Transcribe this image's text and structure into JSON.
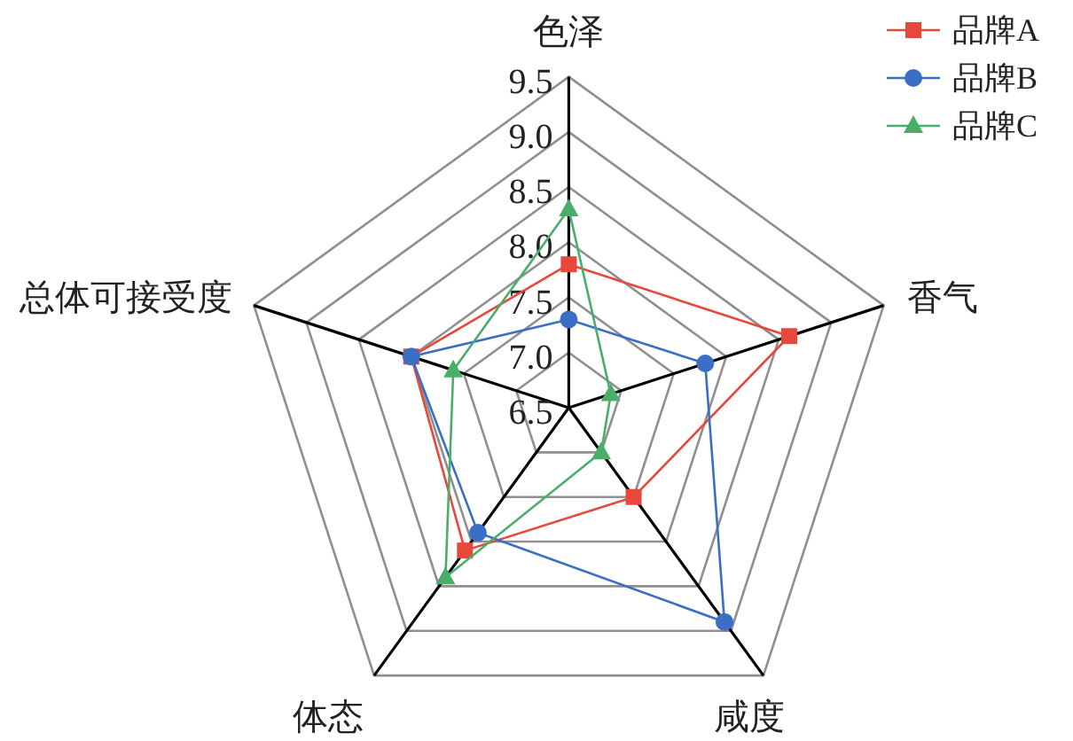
{
  "chart_data": {
    "type": "radar",
    "categories": [
      "色泽",
      "香气",
      "咸度",
      "体态",
      "总体可接受度"
    ],
    "series": [
      {
        "name": "品牌A",
        "color": "#e8473b",
        "marker": "square",
        "values": [
          7.8,
          8.6,
          7.5,
          8.1,
          8.0
        ]
      },
      {
        "name": "品牌B",
        "color": "#3b6fc6",
        "marker": "circle",
        "values": [
          7.3,
          7.8,
          8.9,
          7.9,
          8.0
        ]
      },
      {
        "name": "品牌C",
        "color": "#4aae6b",
        "marker": "triangle",
        "values": [
          8.3,
          6.9,
          7.0,
          8.4,
          7.6
        ]
      }
    ],
    "ylim": [
      6.5,
      9.5
    ],
    "yticks": [
      6.5,
      {
        "value": 7,
        "label": "7.0"
      },
      7.5,
      {
        "value": 8,
        "label": "8.0"
      },
      8.5,
      {
        "value": 9,
        "label": "9.0"
      },
      9.5
    ],
    "grid": true,
    "legend": "top right"
  }
}
